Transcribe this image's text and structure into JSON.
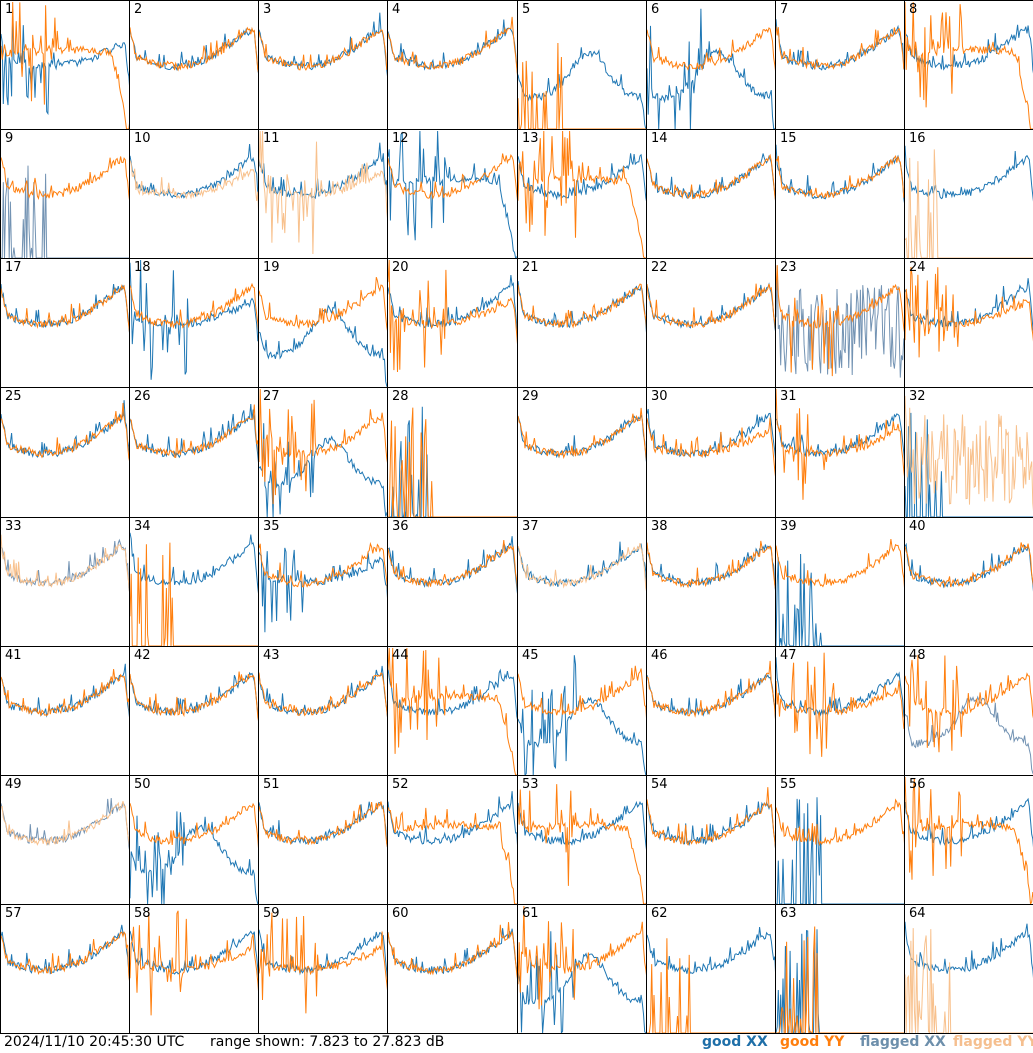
{
  "footer": {
    "timestamp": "2024/11/10 20:45:30 UTC",
    "range": "range shown: 7.823 to 27.823 dB"
  },
  "colors": {
    "good_xx": "#1f77b4",
    "good_yy": "#ff7f0e",
    "flagged_xx": "#7393b3",
    "flagged_yy": "#f8c18d"
  },
  "chart_data": {
    "type": "line",
    "title": "",
    "ylim": [
      7.823,
      27.823
    ],
    "grid": "8x8 small multiples",
    "legend": [
      {
        "key": "good_xx",
        "label": "good XX"
      },
      {
        "key": "good_yy",
        "label": "good YY"
      },
      {
        "key": "flagged_xx",
        "label": "flagged XX"
      },
      {
        "key": "flagged_yy",
        "label": "flagged YY"
      }
    ],
    "panels": [
      {
        "label": "1",
        "xx": "good",
        "yy": "good",
        "xx_shape": "low",
        "yy_shape": "rolloff",
        "xx_spiky": true,
        "yy_spiky": true
      },
      {
        "label": "2",
        "xx": "good",
        "yy": "good",
        "xx_shape": "normal",
        "yy_shape": "normal"
      },
      {
        "label": "3",
        "xx": "good",
        "yy": "good",
        "xx_shape": "normal",
        "yy_shape": "normal"
      },
      {
        "label": "4",
        "xx": "good",
        "yy": "good",
        "xx_shape": "normal",
        "yy_shape": "normal"
      },
      {
        "label": "5",
        "xx": "good",
        "yy": "good",
        "xx_shape": "hump",
        "yy_shape": "dead"
      },
      {
        "label": "6",
        "xx": "good",
        "yy": "good",
        "xx_shape": "hump",
        "yy_shape": "normal",
        "xx_spiky": true
      },
      {
        "label": "7",
        "xx": "good",
        "yy": "good",
        "xx_shape": "normal",
        "yy_shape": "normal"
      },
      {
        "label": "8",
        "xx": "good",
        "yy": "good",
        "xx_shape": "normal",
        "yy_shape": "rolloff",
        "yy_spiky": true
      },
      {
        "label": "9",
        "xx": "flagged",
        "yy": "good",
        "xx_shape": "dead",
        "yy_shape": "normal"
      },
      {
        "label": "10",
        "xx": "good",
        "yy": "flagged",
        "xx_shape": "normal",
        "yy_shape": "low"
      },
      {
        "label": "11",
        "xx": "good",
        "yy": "flagged",
        "xx_shape": "normal",
        "yy_shape": "low",
        "yy_spiky": true
      },
      {
        "label": "12",
        "xx": "good",
        "yy": "good",
        "xx_shape": "rolloff",
        "yy_shape": "normal",
        "xx_spiky": true
      },
      {
        "label": "13",
        "xx": "good",
        "yy": "good",
        "xx_shape": "normal",
        "yy_shape": "rolloff",
        "yy_spiky": true
      },
      {
        "label": "14",
        "xx": "good",
        "yy": "good",
        "xx_shape": "normal",
        "yy_shape": "normal"
      },
      {
        "label": "15",
        "xx": "good",
        "yy": "good",
        "xx_shape": "normal",
        "yy_shape": "normal"
      },
      {
        "label": "16",
        "xx": "good",
        "yy": "flagged",
        "xx_shape": "normal",
        "yy_shape": "dead"
      },
      {
        "label": "17",
        "xx": "good",
        "yy": "good",
        "xx_shape": "normal",
        "yy_shape": "normal"
      },
      {
        "label": "18",
        "xx": "good",
        "yy": "good",
        "xx_shape": "low",
        "yy_shape": "normal",
        "xx_spiky": true
      },
      {
        "label": "19",
        "xx": "good",
        "yy": "good",
        "xx_shape": "hump",
        "yy_shape": "normal"
      },
      {
        "label": "20",
        "xx": "good",
        "yy": "good",
        "xx_shape": "normal",
        "yy_shape": "low",
        "yy_spiky": true
      },
      {
        "label": "21",
        "xx": "good",
        "yy": "good",
        "xx_shape": "normal",
        "yy_shape": "normal"
      },
      {
        "label": "22",
        "xx": "good",
        "yy": "good",
        "xx_shape": "normal",
        "yy_shape": "normal"
      },
      {
        "label": "23",
        "xx": "flagged",
        "yy": "good",
        "xx_shape": "noisy",
        "yy_shape": "normal",
        "yy_spiky": true
      },
      {
        "label": "24",
        "xx": "good",
        "yy": "good",
        "xx_shape": "normal",
        "yy_shape": "low",
        "yy_spiky": true
      },
      {
        "label": "25",
        "xx": "good",
        "yy": "good",
        "xx_shape": "normal",
        "yy_shape": "normal"
      },
      {
        "label": "26",
        "xx": "good",
        "yy": "good",
        "xx_shape": "normal",
        "yy_shape": "normal"
      },
      {
        "label": "27",
        "xx": "good",
        "yy": "good",
        "xx_shape": "hump",
        "yy_shape": "normal",
        "xx_spiky": true,
        "yy_spiky": true
      },
      {
        "label": "28",
        "xx": "good",
        "yy": "good",
        "xx_shape": "dead",
        "yy_shape": "dead"
      },
      {
        "label": "29",
        "xx": "good",
        "yy": "good",
        "xx_shape": "normal",
        "yy_shape": "normal"
      },
      {
        "label": "30",
        "xx": "good",
        "yy": "good",
        "xx_shape": "normal",
        "yy_shape": "low"
      },
      {
        "label": "31",
        "xx": "good",
        "yy": "good",
        "xx_shape": "normal",
        "yy_shape": "low",
        "yy_spiky": true
      },
      {
        "label": "32",
        "xx": "good",
        "yy": "flagged",
        "xx_shape": "dead",
        "yy_shape": "noisy"
      },
      {
        "label": "33",
        "xx": "flagged",
        "yy": "flagged",
        "xx_shape": "normal",
        "yy_shape": "normal"
      },
      {
        "label": "34",
        "xx": "good",
        "yy": "good",
        "xx_shape": "normal",
        "yy_shape": "dead"
      },
      {
        "label": "35",
        "xx": "good",
        "yy": "good",
        "xx_shape": "low",
        "yy_shape": "normal",
        "xx_spiky": true
      },
      {
        "label": "36",
        "xx": "good",
        "yy": "good",
        "xx_shape": "normal",
        "yy_shape": "normal"
      },
      {
        "label": "37",
        "xx": "good",
        "yy": "flagged",
        "xx_shape": "normal",
        "yy_shape": "normal"
      },
      {
        "label": "38",
        "xx": "good",
        "yy": "good",
        "xx_shape": "normal",
        "yy_shape": "normal"
      },
      {
        "label": "39",
        "xx": "good",
        "yy": "good",
        "xx_shape": "dead",
        "yy_shape": "normal"
      },
      {
        "label": "40",
        "xx": "good",
        "yy": "good",
        "xx_shape": "normal",
        "yy_shape": "normal"
      },
      {
        "label": "41",
        "xx": "good",
        "yy": "good",
        "xx_shape": "normal",
        "yy_shape": "normal"
      },
      {
        "label": "42",
        "xx": "good",
        "yy": "good",
        "xx_shape": "normal",
        "yy_shape": "normal"
      },
      {
        "label": "43",
        "xx": "good",
        "yy": "good",
        "xx_shape": "normal",
        "yy_shape": "normal"
      },
      {
        "label": "44",
        "xx": "good",
        "yy": "good",
        "xx_shape": "normal",
        "yy_shape": "rolloff",
        "yy_spiky": true
      },
      {
        "label": "45",
        "xx": "good",
        "yy": "good",
        "xx_shape": "hump",
        "yy_shape": "normal",
        "xx_spiky": true
      },
      {
        "label": "46",
        "xx": "good",
        "yy": "good",
        "xx_shape": "normal",
        "yy_shape": "normal"
      },
      {
        "label": "47",
        "xx": "good",
        "yy": "good",
        "xx_shape": "normal",
        "yy_shape": "low",
        "yy_spiky": true
      },
      {
        "label": "48",
        "xx": "flagged",
        "yy": "good",
        "xx_shape": "hump",
        "yy_shape": "normal",
        "yy_spiky": true
      },
      {
        "label": "49",
        "xx": "flagged",
        "yy": "flagged",
        "xx_shape": "normal",
        "yy_shape": "normal"
      },
      {
        "label": "50",
        "xx": "good",
        "yy": "good",
        "xx_shape": "hump",
        "yy_shape": "normal",
        "xx_spiky": true
      },
      {
        "label": "51",
        "xx": "good",
        "yy": "good",
        "xx_shape": "normal",
        "yy_shape": "normal"
      },
      {
        "label": "52",
        "xx": "good",
        "yy": "good",
        "xx_shape": "normal",
        "yy_shape": "rolloff"
      },
      {
        "label": "53",
        "xx": "good",
        "yy": "good",
        "xx_shape": "normal",
        "yy_shape": "rolloff",
        "yy_spiky": true
      },
      {
        "label": "54",
        "xx": "good",
        "yy": "good",
        "xx_shape": "normal",
        "yy_shape": "normal"
      },
      {
        "label": "55",
        "xx": "good",
        "yy": "good",
        "xx_shape": "dead",
        "yy_shape": "normal"
      },
      {
        "label": "56",
        "xx": "good",
        "yy": "good",
        "xx_shape": "normal",
        "yy_shape": "rolloff",
        "yy_spiky": true
      },
      {
        "label": "57",
        "xx": "good",
        "yy": "good",
        "xx_shape": "normal",
        "yy_shape": "normal"
      },
      {
        "label": "58",
        "xx": "good",
        "yy": "good",
        "xx_shape": "normal",
        "yy_shape": "low",
        "yy_spiky": true
      },
      {
        "label": "59",
        "xx": "good",
        "yy": "good",
        "xx_shape": "normal",
        "yy_shape": "low",
        "yy_spiky": true
      },
      {
        "label": "60",
        "xx": "good",
        "yy": "good",
        "xx_shape": "normal",
        "yy_shape": "normal"
      },
      {
        "label": "61",
        "xx": "good",
        "yy": "good",
        "xx_shape": "hump",
        "yy_shape": "normal",
        "xx_spiky": true,
        "yy_spiky": true
      },
      {
        "label": "62",
        "xx": "good",
        "yy": "good",
        "xx_shape": "normal",
        "yy_shape": "dead",
        "yy_spiky": true
      },
      {
        "label": "63",
        "xx": "good",
        "yy": "good",
        "xx_shape": "dead",
        "yy_shape": "dead"
      },
      {
        "label": "64",
        "xx": "good",
        "yy": "flagged",
        "xx_shape": "normal",
        "yy_shape": "dead"
      }
    ]
  }
}
